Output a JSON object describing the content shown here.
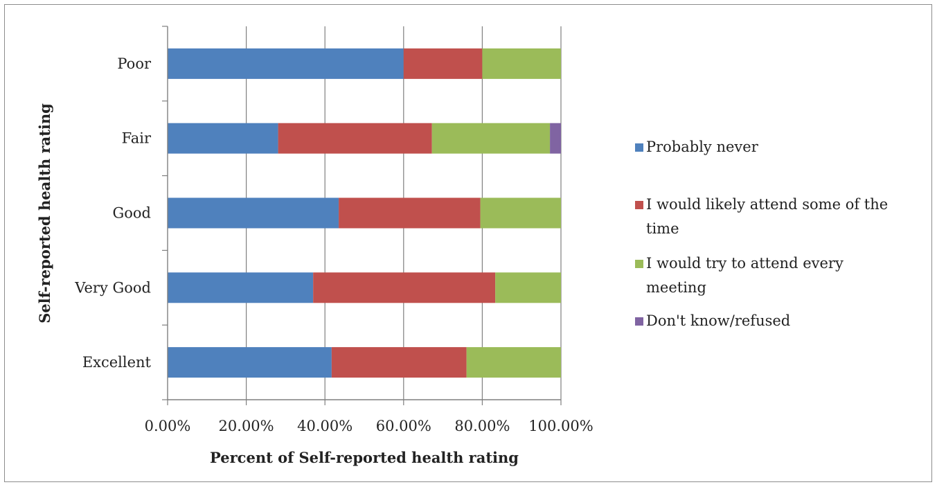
{
  "chart_data": {
    "type": "bar",
    "orientation": "horizontal",
    "stacked": true,
    "percent_stacked": true,
    "categories": [
      "Excellent",
      "Very Good",
      "Good",
      "Fair",
      "Poor"
    ],
    "series": [
      {
        "name": "Probably never",
        "color": "#4F81BD",
        "values": [
          41.7,
          37.0,
          43.5,
          28.1,
          60.0
        ]
      },
      {
        "name": "I would likely attend some of the time",
        "color": "#C0504D",
        "values": [
          34.3,
          46.3,
          36.0,
          39.1,
          20.0
        ]
      },
      {
        "name": "I would try to attend every meeting",
        "color": "#9BBB59",
        "values": [
          24.0,
          16.7,
          20.5,
          30.0,
          20.0
        ]
      },
      {
        "name": "Don't know/refused",
        "color": "#8064A2",
        "values": [
          0,
          0,
          0,
          2.8,
          0
        ]
      }
    ],
    "xlim": [
      0,
      100
    ],
    "x_ticks": [
      "0.00%",
      "20.00%",
      "40.00%",
      "60.00%",
      "80.00%",
      "100.00%"
    ],
    "xlabel": "Percent of Self-reported health rating",
    "ylabel": "Self-reported health rating",
    "grid": "vertical-major",
    "legend_position": "right"
  }
}
